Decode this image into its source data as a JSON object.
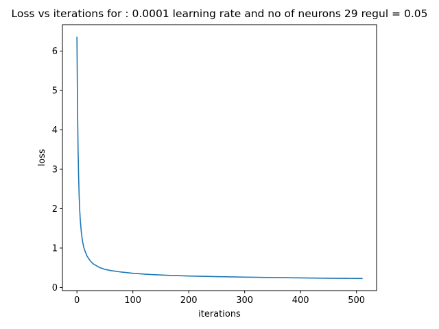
{
  "chart_data": {
    "type": "line",
    "title": "Loss vs iterations for : 0.0001 learning rate and no of neurons 29 regul = 0.05",
    "xlabel": "iterations",
    "ylabel": "loss",
    "xlim": [
      -26,
      536
    ],
    "ylim": [
      -0.08,
      6.67
    ],
    "x_ticks": [
      0,
      100,
      200,
      300,
      400,
      500
    ],
    "y_ticks": [
      0,
      1,
      2,
      3,
      4,
      5,
      6
    ],
    "x_tick_labels": [
      "0",
      "100",
      "200",
      "300",
      "400",
      "500"
    ],
    "y_tick_labels": [
      "0",
      "1",
      "2",
      "3",
      "4",
      "5",
      "6"
    ],
    "grid": false,
    "series": [
      {
        "color": "#1f77b4",
        "x": [
          0,
          1,
          2,
          3,
          4,
          5,
          6,
          8,
          10,
          12,
          15,
          18,
          22,
          26,
          30,
          40,
          50,
          60,
          80,
          100,
          130,
          160,
          200,
          250,
          300,
          350,
          400,
          450,
          510
        ],
        "y": [
          6.35,
          4.6,
          3.5,
          2.8,
          2.3,
          1.95,
          1.7,
          1.38,
          1.17,
          1.03,
          0.9,
          0.8,
          0.71,
          0.64,
          0.59,
          0.51,
          0.46,
          0.43,
          0.39,
          0.36,
          0.33,
          0.31,
          0.29,
          0.275,
          0.263,
          0.252,
          0.243,
          0.235,
          0.228
        ]
      }
    ]
  }
}
